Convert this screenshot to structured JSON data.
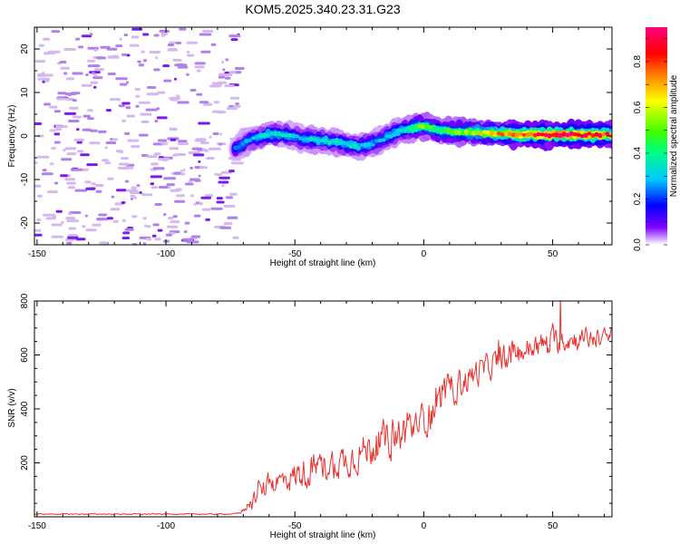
{
  "title": "KOM5.2025.340.23.31.G23",
  "colors": {
    "snr_line": "#e8322e",
    "frame": "#000000",
    "scatter_faint": "#d6b8f0",
    "scatter_mid": "#b080ee",
    "scatter_dark": "#7a1cf0"
  },
  "chart_data": [
    {
      "type": "heatmap",
      "name": "spectrogram",
      "xlabel": "Height of straight line (km)",
      "ylabel": "Frequency (Hz)",
      "xlim": [
        -151,
        73
      ],
      "ylim": [
        -25,
        25
      ],
      "xticks": [
        -150,
        -100,
        -50,
        0,
        50
      ],
      "yticks": [
        -20,
        -10,
        0,
        10,
        20
      ],
      "colorbar": {
        "label": "Normalized spectral amplitude",
        "range": [
          0,
          0.95
        ],
        "ticks": [
          "0.0",
          "0.2",
          "0.4",
          "0.6",
          "0.8"
        ],
        "colormap": [
          "#ffffff",
          "#8000ff",
          "#0000ff",
          "#00c8ff",
          "#00ff80",
          "#40ff00",
          "#ffff00",
          "#ff8000",
          "#ff0000",
          "#ff0080"
        ]
      },
      "noise_region_x": [
        -151,
        -71
      ],
      "ridge": {
        "x": [
          -73,
          -68,
          -60,
          -54,
          -48,
          -40,
          -33,
          -26,
          -20,
          -15,
          -10,
          -6,
          -2,
          2,
          6,
          12,
          20,
          30,
          40,
          50,
          60,
          73
        ],
        "y": [
          -3,
          -1,
          0.5,
          0.3,
          -0.5,
          -1,
          -1.5,
          -2.5,
          -1.8,
          -0.5,
          1,
          1.5,
          2.3,
          2,
          1.2,
          1,
          0.8,
          0.5,
          0.4,
          0.3,
          0.3,
          0.3
        ],
        "amplitude": [
          0.25,
          0.3,
          0.35,
          0.35,
          0.3,
          0.35,
          0.35,
          0.35,
          0.3,
          0.3,
          0.35,
          0.4,
          0.5,
          0.55,
          0.45,
          0.5,
          0.6,
          0.75,
          0.85,
          0.9,
          0.9,
          0.8
        ]
      }
    },
    {
      "type": "line",
      "name": "snr",
      "xlabel": "Height of straight line (km)",
      "ylabel": "SNR (v/v)",
      "xlim": [
        -151,
        73
      ],
      "ylim": [
        0,
        800
      ],
      "xticks": [
        -150,
        -100,
        -50,
        0,
        50
      ],
      "yticks": [
        200,
        400,
        600,
        800
      ],
      "envelope_x": [
        -151,
        -75,
        -72,
        -70,
        -65,
        -60,
        -50,
        -40,
        -30,
        -20,
        -10,
        0,
        10,
        20,
        30,
        40,
        50,
        60,
        73
      ],
      "envelope_y": [
        10,
        10,
        12,
        25,
        80,
        120,
        150,
        185,
        210,
        260,
        300,
        360,
        470,
        530,
        580,
        620,
        650,
        660,
        665
      ],
      "noise_amplitude": [
        3,
        3,
        5,
        15,
        50,
        60,
        80,
        85,
        90,
        100,
        110,
        100,
        90,
        80,
        70,
        70,
        70,
        60,
        50
      ],
      "peak": {
        "x": 53,
        "y": 820
      }
    }
  ]
}
